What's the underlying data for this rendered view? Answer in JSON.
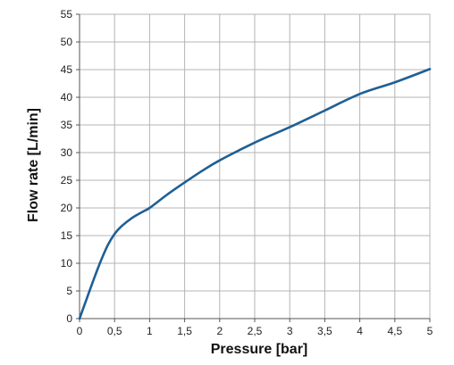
{
  "chart_data": {
    "type": "line",
    "title": "",
    "xlabel": "Pressure [bar]",
    "ylabel": "Flow rate [L/min]",
    "xlim": [
      0,
      5
    ],
    "ylim": [
      0,
      55
    ],
    "x_ticks": [
      "0",
      "0,5",
      "1",
      "1,5",
      "2",
      "2,5",
      "3",
      "3,5",
      "4",
      "4,5",
      "5"
    ],
    "y_ticks": [
      "0",
      "5",
      "10",
      "15",
      "20",
      "25",
      "30",
      "35",
      "40",
      "45",
      "50",
      "55"
    ],
    "grid": true,
    "legend": "none",
    "series": [
      {
        "color": "#1f5f94",
        "x": [
          0,
          0.1,
          0.2,
          0.3,
          0.4,
          0.5,
          0.6,
          0.75,
          0.9,
          1.0,
          1.25,
          1.5,
          1.75,
          2.0,
          2.5,
          3.0,
          3.5,
          4.0,
          4.5,
          5.0
        ],
        "y": [
          0,
          3.5,
          7,
          10.3,
          13.2,
          15.3,
          16.7,
          18.2,
          19.3,
          20,
          22.4,
          24.6,
          26.7,
          28.6,
          31.8,
          34.6,
          37.6,
          40.6,
          42.7,
          45.1
        ]
      }
    ]
  }
}
